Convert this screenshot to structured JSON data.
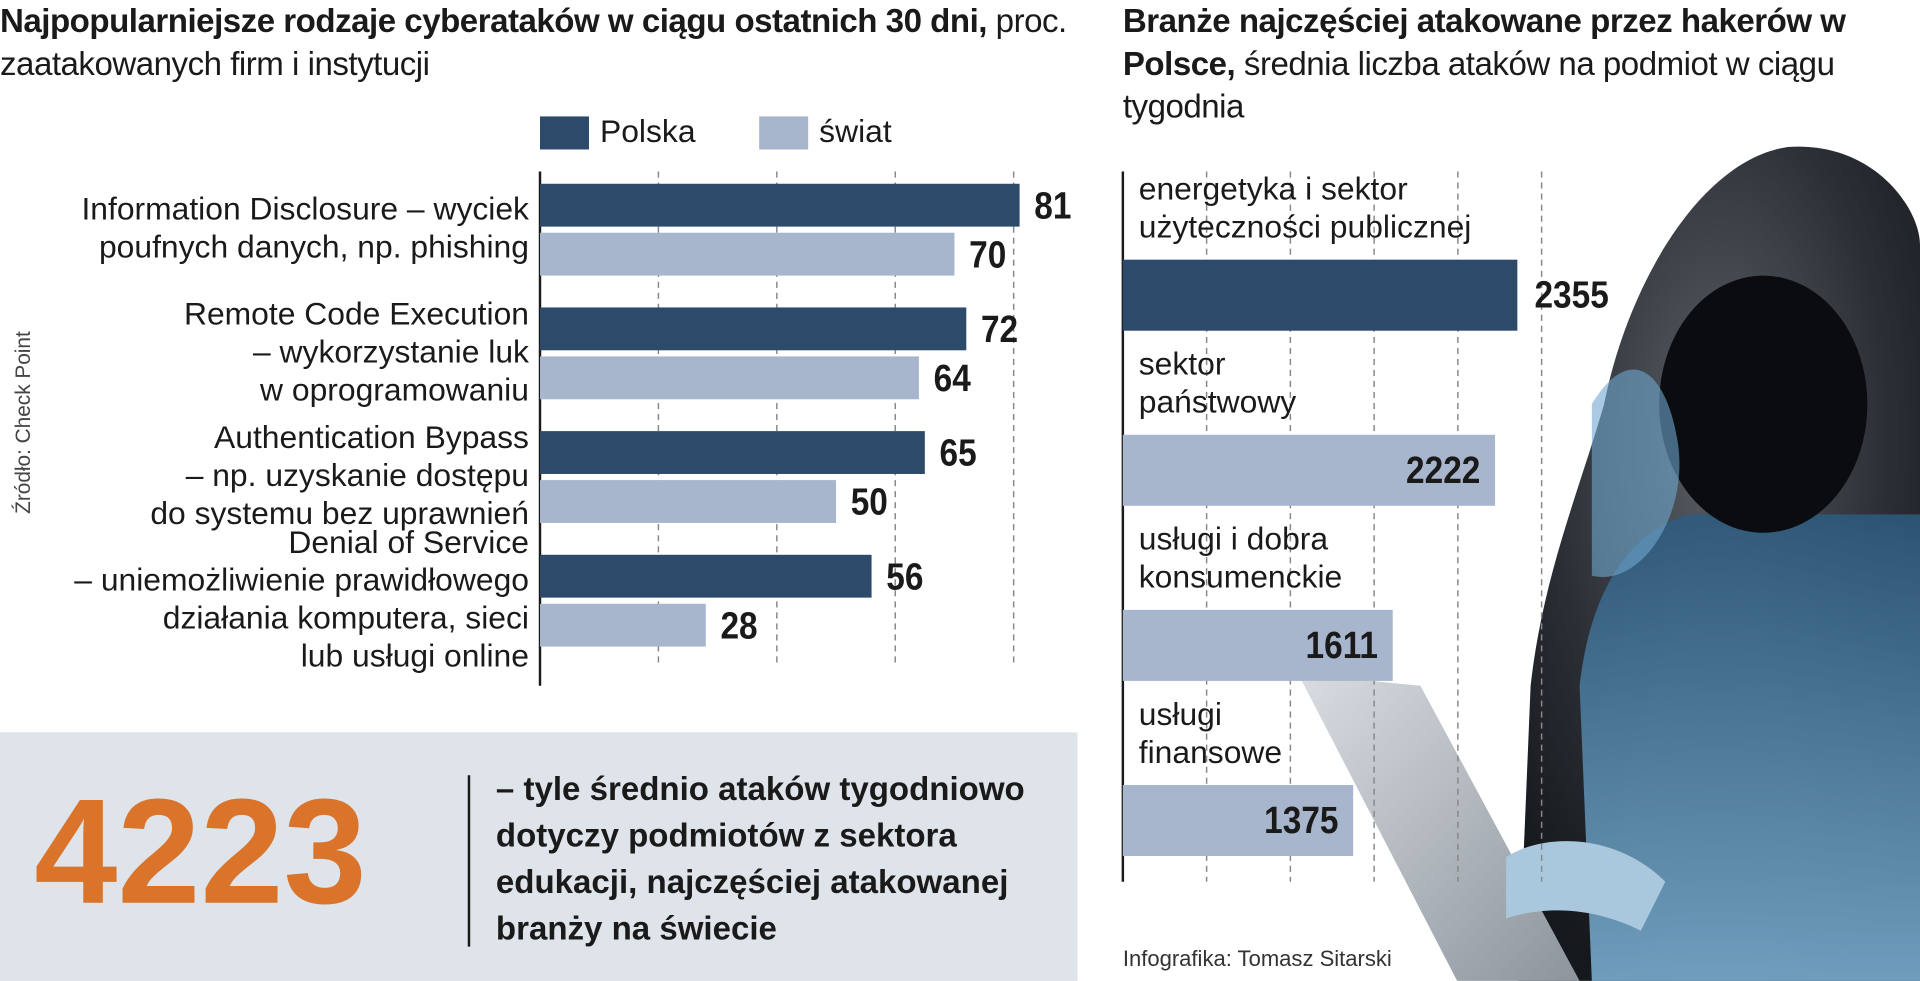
{
  "chart_data": [
    {
      "type": "hbar-grouped",
      "title": "Najpopularniejsze rodzaje cyberataków w ciągu ostatnich 30 dni,",
      "subtitle": "proc. zaatakowanych firm i instytucji",
      "categories": [
        [
          "Information Disclosure – wyciek",
          "poufnych danych, np. phishing"
        ],
        [
          "Remote Code Execution",
          "– wykorzystanie luk",
          "w oprogramowaniu"
        ],
        [
          "Authentication Bypass",
          "– np. uzyskanie dostępu",
          "do systemu bez uprawnień"
        ],
        [
          "Denial of Service",
          "– uniemożliwienie prawidłowego",
          "działania komputera, sieci",
          "lub usługi online"
        ]
      ],
      "series": [
        {
          "name": "Polska",
          "color": "#2d4a6b",
          "values": [
            81,
            72,
            65,
            56
          ]
        },
        {
          "name": "świat",
          "color": "#a7b6cc",
          "values": [
            70,
            64,
            50,
            28
          ]
        }
      ],
      "xlim": [
        0,
        85
      ],
      "xticks": [
        0,
        20,
        40,
        60,
        80
      ],
      "grid": true
    },
    {
      "type": "hbar",
      "title": "Branże najczęściej atakowane przez hakerów w Polsce,",
      "subtitle": "średnia liczba ataków na podmiot w ciągu tygodnia",
      "categories": [
        [
          "energetyka i sektor",
          "użyteczności publicznej"
        ],
        [
          "sektor",
          "państwowy"
        ],
        [
          "usługi i dobra",
          "konsumenckie"
        ],
        [
          "usługi",
          "finansowe"
        ]
      ],
      "values": [
        2355,
        2222,
        1611,
        1375
      ],
      "colors": [
        "#2d4a6b",
        "#a7b6cc",
        "#a7b6cc",
        "#a7b6cc"
      ],
      "xlim": [
        0,
        2500
      ],
      "xticks": [
        0,
        500,
        1000,
        1500,
        2000,
        2500
      ],
      "grid": true
    }
  ],
  "callout": {
    "number": "4223",
    "lines": [
      "– tyle średnio ataków tygodniowo",
      "dotyczy podmiotów z sektora",
      "edukacji, najczęściej atakowanej",
      "branży na świecie"
    ]
  },
  "source": "Źródło: Check Point",
  "credit": "Infografika: Tomasz Sitarski"
}
